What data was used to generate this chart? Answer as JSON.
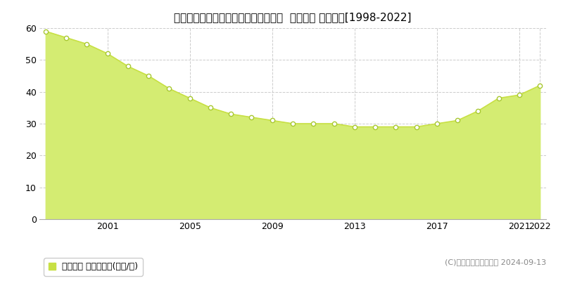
{
  "title": "福岡県太宰府市水城１丁目５５番１外  地価公示 地価推移[1998-2022]",
  "years": [
    1998,
    1999,
    2000,
    2001,
    2002,
    2003,
    2004,
    2005,
    2006,
    2007,
    2008,
    2009,
    2010,
    2011,
    2012,
    2013,
    2014,
    2015,
    2016,
    2017,
    2018,
    2019,
    2020,
    2021,
    2022
  ],
  "values": [
    59,
    57,
    55,
    52,
    48,
    45,
    41,
    38,
    35,
    33,
    32,
    31,
    30,
    30,
    30,
    29,
    29,
    29,
    29,
    30,
    31,
    34,
    38,
    39,
    42
  ],
  "line_color": "#c8e044",
  "fill_color": "#d4ec72",
  "marker_color": "#ffffff",
  "marker_edge_color": "#a8c830",
  "ylim": [
    0,
    60
  ],
  "yticks": [
    0,
    10,
    20,
    30,
    40,
    50,
    60
  ],
  "xtick_years": [
    2001,
    2005,
    2009,
    2013,
    2017,
    2021,
    2022
  ],
  "grid_color": "#cccccc",
  "bg_color": "#ffffff",
  "plot_bg_color": "#ffffff",
  "legend_label": "地価公示 平均坪単価(万円/坪)",
  "copyright": "(C)土地価格ドットコム 2024-09-13",
  "title_fontsize": 11,
  "tick_fontsize": 9,
  "legend_fontsize": 9,
  "copyright_fontsize": 8
}
